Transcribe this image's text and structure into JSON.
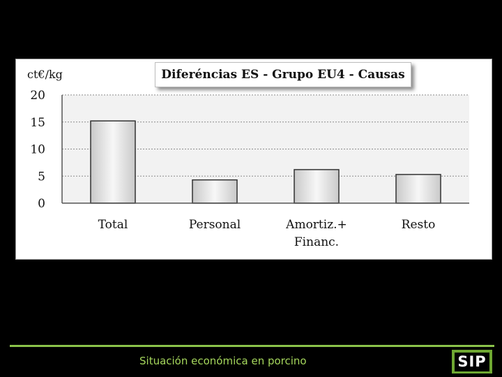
{
  "slide": {
    "footer_text": "Situación económica en porcino",
    "logo_text": "SIP",
    "footer_color": "#8bc34a"
  },
  "chart_data": {
    "type": "bar",
    "title": "Diferéncias ES - Grupo EU4 - Causas",
    "ylabel": "ct€/kg",
    "xlabel": "",
    "categories": [
      "Total",
      "Personal",
      "Amortiz.+ Financ.",
      "Resto"
    ],
    "category_lines": [
      [
        "Total"
      ],
      [
        "Personal"
      ],
      [
        "Amortiz.+",
        "Financ."
      ],
      [
        "Resto"
      ]
    ],
    "values": [
      15.2,
      4.3,
      6.2,
      5.3
    ],
    "ylim": [
      0,
      20
    ],
    "yticks": [
      0,
      5,
      10,
      15,
      20
    ],
    "grid": true,
    "legend": "none",
    "bar_color": "#e8e8e8",
    "plot_background": "#f2f2f2"
  }
}
